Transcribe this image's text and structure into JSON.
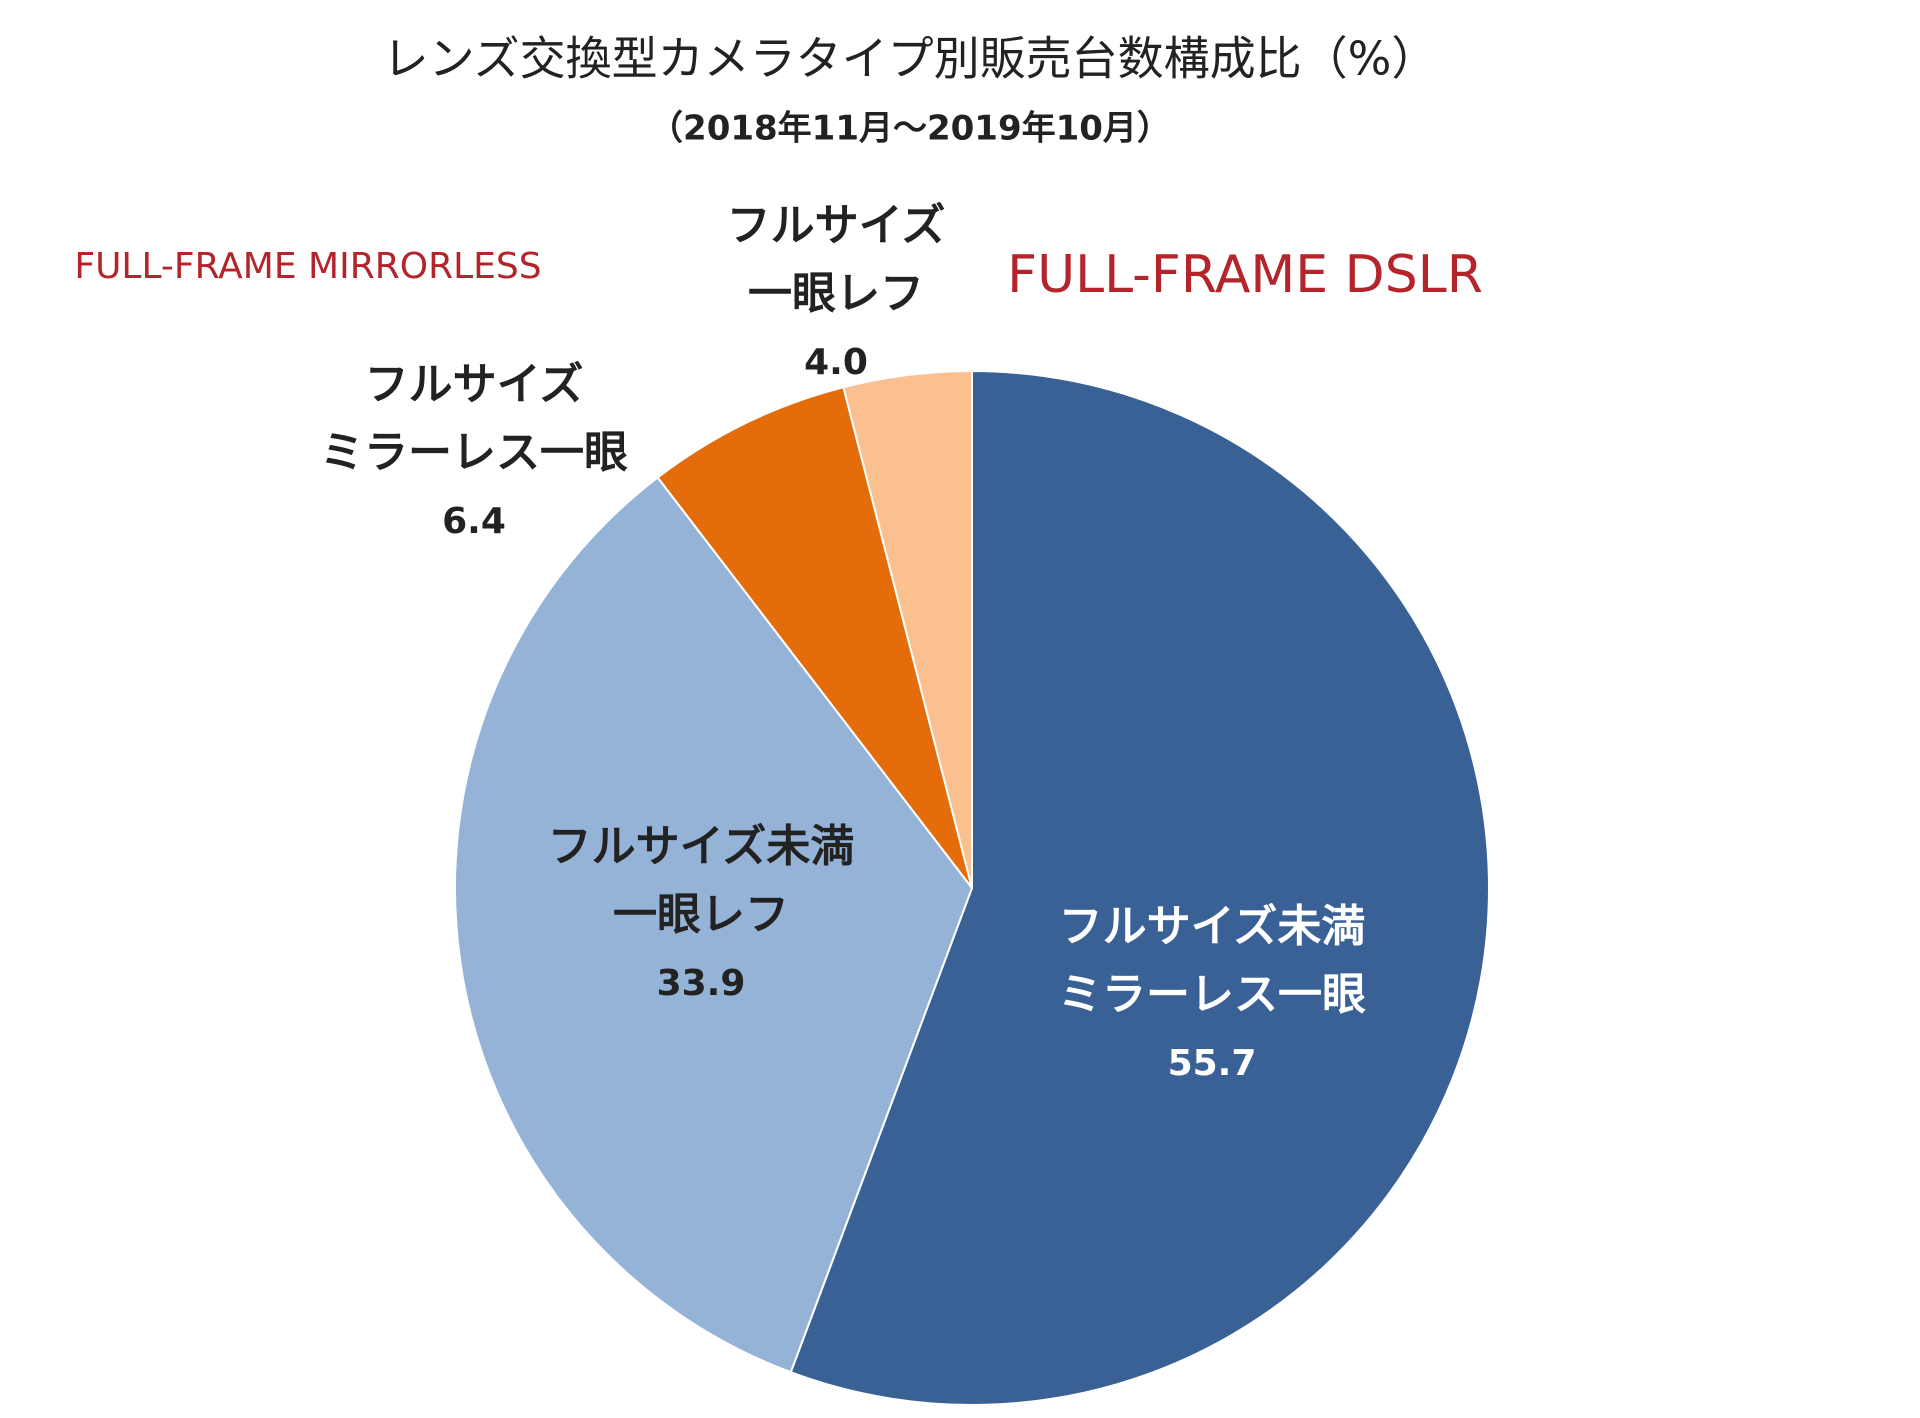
{
  "chart_data": {
    "type": "pie",
    "title": "レンズ交換型カメラタイプ別販売台数構成比（%）",
    "subtitle": "（2018年11月～2019年10月）",
    "annotations": [
      "FULL-FRAME MIRRORLESS",
      "FULL-FRAME DSLR"
    ],
    "annotation_color": "#b3242b",
    "categories": [
      [
        "フルサイズ未満",
        "ミラーレス一眼"
      ],
      [
        "フルサイズ未満",
        "一眼レフ"
      ],
      [
        "フルサイズ",
        "ミラーレス一眼"
      ],
      [
        "フルサイズ",
        "一眼レフ"
      ]
    ],
    "values": [
      55.7,
      33.9,
      6.4,
      4
    ],
    "value_labels": [
      "55.7",
      "33.9",
      "6.4",
      "4.0"
    ],
    "colors": [
      "#3a6195",
      "#95b3d7",
      "#e46c0a",
      "#fac090"
    ],
    "label_colors": [
      "#ffffff",
      "#222222",
      "#222222",
      "#222222"
    ]
  }
}
